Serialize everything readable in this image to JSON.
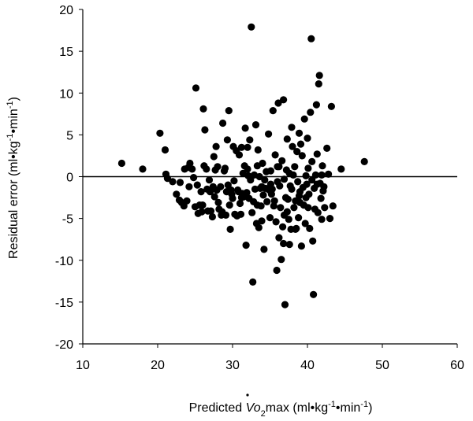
{
  "chart_data": {
    "type": "scatter",
    "xlabel": {
      "prefix": "Predicted ",
      "v": "V",
      "o2": "o",
      "sub2": "2",
      "rest": "max (ml•kg",
      "exp1": "-1",
      "mid": "•min",
      "exp2": "-1",
      "close": ")"
    },
    "ylabel": {
      "prefix": "Residual error (ml•kg",
      "exp1": "-1",
      "mid": "•min",
      "exp2": "-1",
      "close": ")"
    },
    "xlim": [
      10,
      60
    ],
    "ylim": [
      -20,
      20
    ],
    "xticks": [
      "10",
      "20",
      "30",
      "40",
      "50",
      "60"
    ],
    "yticks": [
      "20",
      "15",
      "10",
      "5",
      "0",
      "-5",
      "-10",
      "-15",
      "-20"
    ],
    "reference_line_y": 0,
    "grid": false,
    "point_color": "#000000",
    "points": [
      [
        15.2,
        1.6
      ],
      [
        18.0,
        0.9
      ],
      [
        20.3,
        5.2
      ],
      [
        21.0,
        3.2
      ],
      [
        21.1,
        0.3
      ],
      [
        21.3,
        -0.2
      ],
      [
        22.0,
        -0.6
      ],
      [
        22.5,
        -2.1
      ],
      [
        22.9,
        -2.8
      ],
      [
        23.2,
        -3.1
      ],
      [
        23.5,
        -3.5
      ],
      [
        23.9,
        -2.9
      ],
      [
        23.6,
        0.9
      ],
      [
        24.1,
        1.1
      ],
      [
        24.3,
        1.6
      ],
      [
        24.2,
        -1.2
      ],
      [
        24.6,
        0.9
      ],
      [
        25.1,
        10.6
      ],
      [
        25.0,
        -3.6
      ],
      [
        25.4,
        -4.4
      ],
      [
        25.6,
        -3.4
      ],
      [
        25.8,
        -1.8
      ],
      [
        25.9,
        -4.2
      ],
      [
        26.1,
        8.1
      ],
      [
        26.3,
        5.6
      ],
      [
        26.2,
        1.3
      ],
      [
        26.5,
        0.9
      ],
      [
        26.9,
        -0.4
      ],
      [
        27.0,
        -1.8
      ],
      [
        27.1,
        -4.1
      ],
      [
        27.3,
        -4.8
      ],
      [
        27.5,
        2.4
      ],
      [
        27.7,
        0.8
      ],
      [
        27.8,
        3.6
      ],
      [
        27.9,
        -1.6
      ],
      [
        28.1,
        -3.1
      ],
      [
        28.2,
        -3.9
      ],
      [
        28.4,
        -1.2
      ],
      [
        28.5,
        -4.6
      ],
      [
        28.7,
        6.4
      ],
      [
        28.9,
        0.7
      ],
      [
        29.0,
        1.0
      ],
      [
        29.2,
        -1.8
      ],
      [
        29.3,
        4.4
      ],
      [
        29.5,
        7.9
      ],
      [
        29.6,
        -3.4
      ],
      [
        29.7,
        -6.3
      ],
      [
        29.9,
        -2.1
      ],
      [
        30.1,
        3.6
      ],
      [
        30.2,
        -0.5
      ],
      [
        30.3,
        -4.5
      ],
      [
        30.5,
        3.1
      ],
      [
        30.7,
        -1.6
      ],
      [
        30.9,
        2.6
      ],
      [
        31.0,
        -3.2
      ],
      [
        31.1,
        -4.5
      ],
      [
        31.2,
        3.5
      ],
      [
        31.4,
        0.4
      ],
      [
        31.5,
        -2.4
      ],
      [
        31.7,
        5.8
      ],
      [
        31.8,
        -8.2
      ],
      [
        31.9,
        -1.9
      ],
      [
        32.0,
        3.5
      ],
      [
        32.1,
        0.1
      ],
      [
        32.2,
        -2.6
      ],
      [
        32.3,
        4.4
      ],
      [
        32.4,
        -0.4
      ],
      [
        32.5,
        17.9
      ],
      [
        32.6,
        -4.3
      ],
      [
        32.7,
        -12.6
      ],
      [
        32.9,
        0.2
      ],
      [
        33.0,
        -1.5
      ],
      [
        33.2,
        -5.6
      ],
      [
        33.3,
        1.3
      ],
      [
        33.4,
        3.2
      ],
      [
        33.6,
        0.0
      ],
      [
        33.7,
        -1.4
      ],
      [
        33.8,
        -3.5
      ],
      [
        33.9,
        -5.3
      ],
      [
        34.1,
        -2.2
      ],
      [
        34.2,
        -8.7
      ],
      [
        34.3,
        -0.4
      ],
      [
        34.5,
        0.6
      ],
      [
        34.6,
        -3.0
      ],
      [
        34.8,
        5.1
      ],
      [
        34.9,
        -1.6
      ],
      [
        35.0,
        -4.9
      ],
      [
        35.1,
        0.7
      ],
      [
        35.2,
        -2.1
      ],
      [
        35.4,
        7.9
      ],
      [
        35.6,
        -2.9
      ],
      [
        35.7,
        2.6
      ],
      [
        35.8,
        -5.4
      ],
      [
        35.9,
        -11.2
      ],
      [
        36.0,
        -0.6
      ],
      [
        36.1,
        8.8
      ],
      [
        36.2,
        1.2
      ],
      [
        36.3,
        -1.1
      ],
      [
        36.4,
        -3.7
      ],
      [
        36.5,
        -9.9
      ],
      [
        36.6,
        1.9
      ],
      [
        36.7,
        -6.0
      ],
      [
        36.8,
        9.2
      ],
      [
        36.9,
        -4.6
      ],
      [
        37.0,
        -15.3
      ],
      [
        37.1,
        -2.5
      ],
      [
        37.2,
        0.8
      ],
      [
        37.3,
        4.5
      ],
      [
        37.4,
        -2.7
      ],
      [
        37.5,
        -5.1
      ],
      [
        37.6,
        -8.1
      ],
      [
        37.7,
        -1.1
      ],
      [
        37.8,
        -6.3
      ],
      [
        37.9,
        5.9
      ],
      [
        38.0,
        3.6
      ],
      [
        38.1,
        0.2
      ],
      [
        38.2,
        -3.7
      ],
      [
        38.3,
        1.2
      ],
      [
        38.4,
        -2.9
      ],
      [
        38.5,
        -6.2
      ],
      [
        38.6,
        3.0
      ],
      [
        38.7,
        -0.6
      ],
      [
        38.8,
        -4.9
      ],
      [
        38.9,
        5.2
      ],
      [
        39.0,
        -1.8
      ],
      [
        39.2,
        -8.3
      ],
      [
        39.3,
        2.5
      ],
      [
        39.4,
        -1.3
      ],
      [
        39.5,
        -3.4
      ],
      [
        39.6,
        6.9
      ],
      [
        39.7,
        -5.6
      ],
      [
        39.8,
        0.1
      ],
      [
        39.9,
        -0.9
      ],
      [
        40.0,
        4.6
      ],
      [
        40.1,
        -3.7
      ],
      [
        40.2,
        -2.1
      ],
      [
        40.3,
        -6.2
      ],
      [
        40.4,
        7.7
      ],
      [
        40.5,
        16.5
      ],
      [
        40.6,
        1.8
      ],
      [
        40.7,
        -7.7
      ],
      [
        40.8,
        -14.1
      ],
      [
        40.9,
        -1.4
      ],
      [
        41.0,
        -3.9
      ],
      [
        41.1,
        0.2
      ],
      [
        41.2,
        8.6
      ],
      [
        41.3,
        2.7
      ],
      [
        41.4,
        -4.3
      ],
      [
        41.5,
        11.1
      ],
      [
        41.6,
        12.1
      ],
      [
        41.7,
        -0.8
      ],
      [
        41.8,
        -2.6
      ],
      [
        41.9,
        -5.1
      ],
      [
        42.0,
        1.3
      ],
      [
        42.1,
        -1.7
      ],
      [
        42.3,
        -3.7
      ],
      [
        42.6,
        3.4
      ],
      [
        42.8,
        0.3
      ],
      [
        43.0,
        -5.0
      ],
      [
        43.2,
        8.4
      ],
      [
        44.5,
        0.9
      ],
      [
        47.6,
        1.8
      ],
      [
        26.6,
        -1.5
      ],
      [
        30.0,
        -2.6
      ],
      [
        34.0,
        1.6
      ],
      [
        36.9,
        -0.3
      ],
      [
        39.1,
        3.9
      ],
      [
        28.0,
        1.2
      ],
      [
        31.3,
        -2.0
      ],
      [
        35.5,
        -3.5
      ],
      [
        33.1,
        6.2
      ],
      [
        37.3,
        -4.2
      ],
      [
        29.4,
        -1.0
      ],
      [
        38.9,
        -2.3
      ],
      [
        40.6,
        -0.4
      ],
      [
        25.3,
        -1.0
      ],
      [
        27.4,
        -1.2
      ],
      [
        32.8,
        -3.0
      ],
      [
        36.2,
        -7.3
      ],
      [
        24.8,
        -0.1
      ],
      [
        23.0,
        -0.7
      ],
      [
        26.0,
        -3.4
      ],
      [
        30.8,
        -1.8
      ],
      [
        34.4,
        -1.4
      ],
      [
        37.6,
        0.4
      ],
      [
        40.1,
        1.0
      ],
      [
        41.9,
        0.2
      ],
      [
        38.4,
        -6.3
      ],
      [
        36.8,
        -8.0
      ],
      [
        35.1,
        -0.9
      ],
      [
        33.5,
        -6.1
      ],
      [
        31.6,
        1.3
      ],
      [
        29.1,
        -4.6
      ],
      [
        27.6,
        -2.4
      ],
      [
        26.7,
        -4.1
      ],
      [
        28.6,
        -4.2
      ],
      [
        30.6,
        -4.7
      ],
      [
        32.0,
        0.9
      ],
      [
        33.9,
        -1.2
      ],
      [
        36.0,
        1.2
      ],
      [
        39.0,
        -3.1
      ],
      [
        42.2,
        -1.2
      ],
      [
        43.4,
        -3.5
      ],
      [
        41.3,
        -0.9
      ],
      [
        39.8,
        -2.5
      ],
      [
        37.9,
        -1.5
      ],
      [
        35.3,
        -1.5
      ],
      [
        33.3,
        -3.4
      ],
      [
        31.2,
        -2.5
      ],
      [
        29.8,
        -1.6
      ]
    ]
  }
}
